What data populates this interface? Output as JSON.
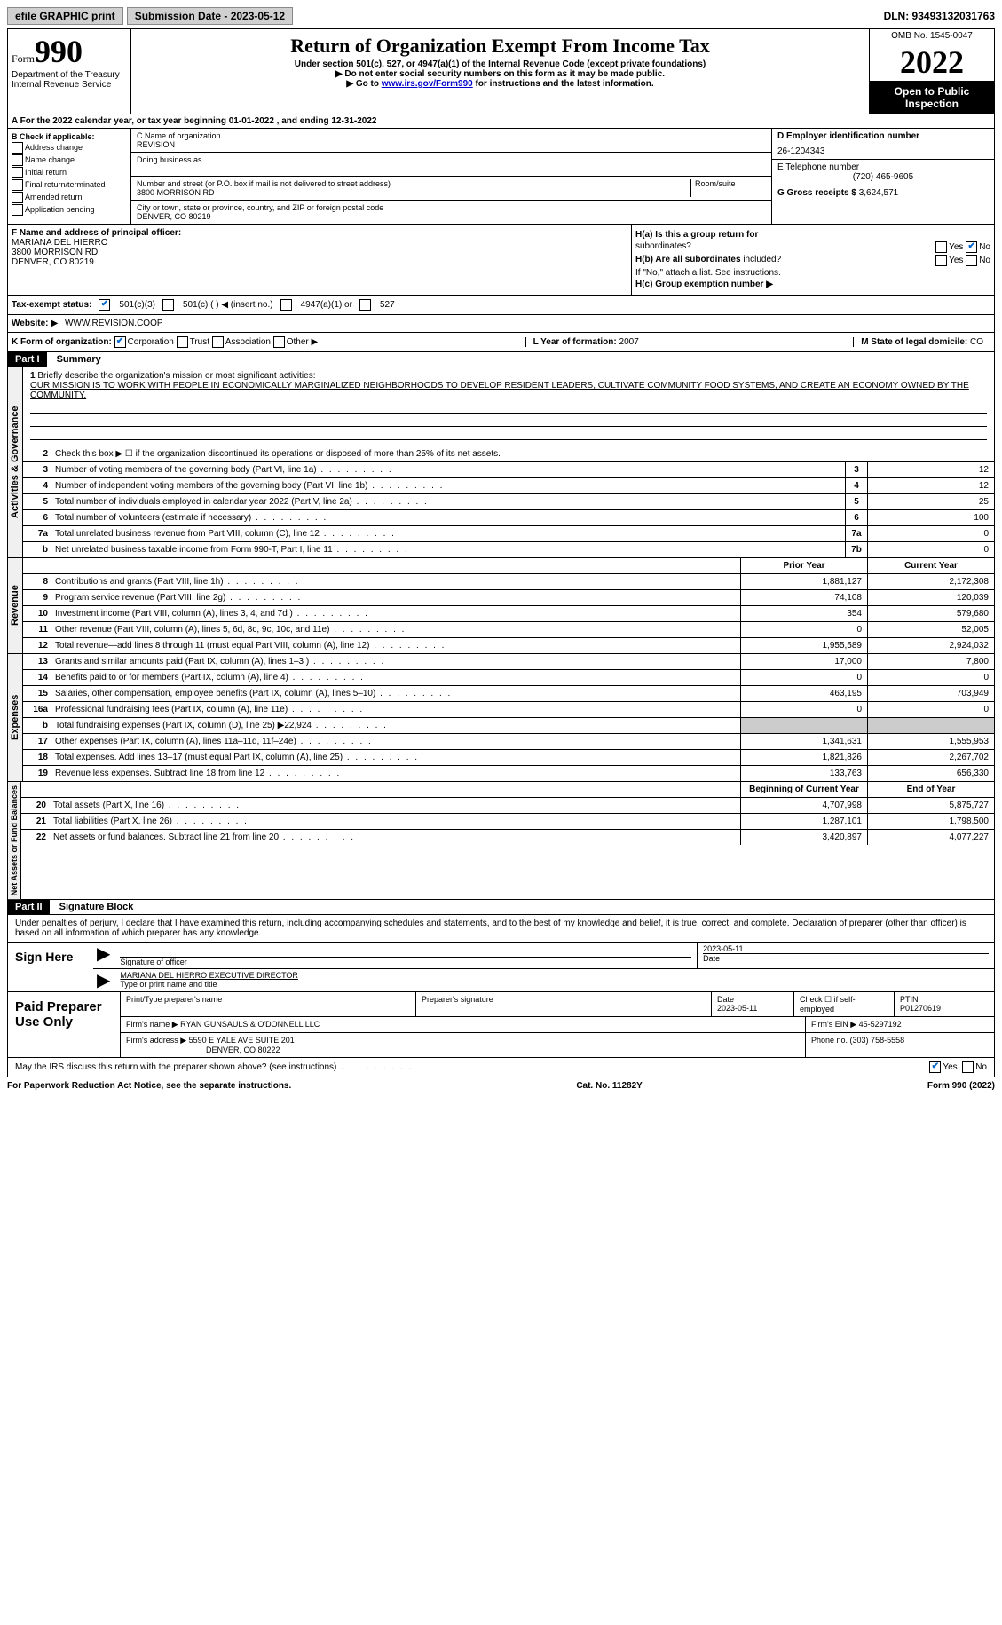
{
  "top": {
    "efile_label": "efile GRAPHIC print",
    "sub_date_label": "Submission Date - 2023-05-12",
    "dln": "DLN: 93493132031763"
  },
  "header": {
    "form_label": "Form",
    "form_num": "990",
    "dept": "Department of the Treasury",
    "irs": "Internal Revenue Service",
    "title": "Return of Organization Exempt From Income Tax",
    "sub": "Under section 501(c), 527, or 4947(a)(1) of the Internal Revenue Code (except private foundations)",
    "inst1": "▶ Do not enter social security numbers on this form as it may be made public.",
    "inst2_pre": "▶ Go to ",
    "inst2_link": "www.irs.gov/Form990",
    "inst2_post": " for instructions and the latest information.",
    "omb": "OMB No. 1545-0047",
    "year": "2022",
    "inspection1": "Open to Public",
    "inspection2": "Inspection"
  },
  "a": {
    "text_pre": "A For the 2022 calendar year, or tax year beginning ",
    "begin": "01-01-2022",
    "mid": " , and ending ",
    "end": "12-31-2022"
  },
  "b": {
    "label": "B Check if applicable:",
    "opt1": "Address change",
    "opt2": "Name change",
    "opt3": "Initial return",
    "opt4": "Final return/terminated",
    "opt5": "Amended return",
    "opt6": "Application pending"
  },
  "c": {
    "name_label": "C Name of organization",
    "name": "REVISION",
    "dba_label": "Doing business as",
    "addr_label": "Number and street (or P.O. box if mail is not delivered to street address)",
    "room_label": "Room/suite",
    "addr": "3800 MORRISON RD",
    "city_label": "City or town, state or province, country, and ZIP or foreign postal code",
    "city": "DENVER, CO  80219"
  },
  "d": {
    "ein_label": "D Employer identification number",
    "ein": "26-1204343",
    "phone_label": "E Telephone number",
    "phone": "(720) 465-9605",
    "gross_label": "G Gross receipts $ ",
    "gross": "3,624,571"
  },
  "f": {
    "label": "F Name and address of principal officer:",
    "name": "MARIANA DEL HIERRO",
    "addr": "3800 MORRISON RD",
    "city": "DENVER, CO  80219"
  },
  "h": {
    "a_label": "H(a)  Is this a group return for",
    "a_sub": "subordinates?",
    "b_label": "H(b)  Are all subordinates",
    "b_sub": "included?",
    "b_note": "If \"No,\" attach a list. See instructions.",
    "c_label": "H(c)  Group exemption number ▶",
    "yes": "Yes",
    "no": "No"
  },
  "i": {
    "label": "Tax-exempt status:",
    "o1": "501(c)(3)",
    "o2": "501(c) (  ) ◀ (insert no.)",
    "o3": "4947(a)(1) or",
    "o4": "527"
  },
  "j": {
    "label": "Website: ▶",
    "value": "WWW.REVISION.COOP"
  },
  "k": {
    "label": "K Form of organization:",
    "o1": "Corporation",
    "o2": "Trust",
    "o3": "Association",
    "o4": "Other ▶",
    "l_label": "L Year of formation: ",
    "l_val": "2007",
    "m_label": "M State of legal domicile: ",
    "m_val": "CO"
  },
  "part1": {
    "header": "Part I",
    "title": "Summary",
    "q1_label": "Briefly describe the organization's mission or most significant activities:",
    "q1_text": "OUR MISSION IS TO WORK WITH PEOPLE IN ECONOMICALLY MARGINALIZED NEIGHBORHOODS TO DEVELOP RESIDENT LEADERS, CULTIVATE COMMUNITY FOOD SYSTEMS, AND CREATE AN ECONOMY OWNED BY THE COMMUNITY.",
    "q2": "Check this box ▶ ☐ if the organization discontinued its operations or disposed of more than 25% of its net assets.",
    "sec_act": "Activities & Governance",
    "sec_rev": "Revenue",
    "sec_exp": "Expenses",
    "sec_net": "Net Assets or Fund Balances",
    "prior_year": "Prior Year",
    "current_year": "Current Year",
    "begin_year": "Beginning of Current Year",
    "end_year": "End of Year",
    "rows_gov": [
      {
        "n": "3",
        "d": "Number of voting members of the governing body (Part VI, line 1a)",
        "b": "3",
        "v": "12"
      },
      {
        "n": "4",
        "d": "Number of independent voting members of the governing body (Part VI, line 1b)",
        "b": "4",
        "v": "12"
      },
      {
        "n": "5",
        "d": "Total number of individuals employed in calendar year 2022 (Part V, line 2a)",
        "b": "5",
        "v": "25"
      },
      {
        "n": "6",
        "d": "Total number of volunteers (estimate if necessary)",
        "b": "6",
        "v": "100"
      },
      {
        "n": "7a",
        "d": "Total unrelated business revenue from Part VIII, column (C), line 12",
        "b": "7a",
        "v": "0"
      },
      {
        "n": "b",
        "d": "Net unrelated business taxable income from Form 990-T, Part I, line 11",
        "b": "7b",
        "v": "0"
      }
    ],
    "rows_rev": [
      {
        "n": "8",
        "d": "Contributions and grants (Part VIII, line 1h)",
        "p": "1,881,127",
        "c": "2,172,308"
      },
      {
        "n": "9",
        "d": "Program service revenue (Part VIII, line 2g)",
        "p": "74,108",
        "c": "120,039"
      },
      {
        "n": "10",
        "d": "Investment income (Part VIII, column (A), lines 3, 4, and 7d )",
        "p": "354",
        "c": "579,680"
      },
      {
        "n": "11",
        "d": "Other revenue (Part VIII, column (A), lines 5, 6d, 8c, 9c, 10c, and 11e)",
        "p": "0",
        "c": "52,005"
      },
      {
        "n": "12",
        "d": "Total revenue—add lines 8 through 11 (must equal Part VIII, column (A), line 12)",
        "p": "1,955,589",
        "c": "2,924,032"
      }
    ],
    "rows_exp": [
      {
        "n": "13",
        "d": "Grants and similar amounts paid (Part IX, column (A), lines 1–3 )",
        "p": "17,000",
        "c": "7,800"
      },
      {
        "n": "14",
        "d": "Benefits paid to or for members (Part IX, column (A), line 4)",
        "p": "0",
        "c": "0"
      },
      {
        "n": "15",
        "d": "Salaries, other compensation, employee benefits (Part IX, column (A), lines 5–10)",
        "p": "463,195",
        "c": "703,949"
      },
      {
        "n": "16a",
        "d": "Professional fundraising fees (Part IX, column (A), line 11e)",
        "p": "0",
        "c": "0"
      },
      {
        "n": "b",
        "d": "Total fundraising expenses (Part IX, column (D), line 25) ▶22,924",
        "p": "",
        "c": "",
        "shaded": true
      },
      {
        "n": "17",
        "d": "Other expenses (Part IX, column (A), lines 11a–11d, 11f–24e)",
        "p": "1,341,631",
        "c": "1,555,953"
      },
      {
        "n": "18",
        "d": "Total expenses. Add lines 13–17 (must equal Part IX, column (A), line 25)",
        "p": "1,821,826",
        "c": "2,267,702"
      },
      {
        "n": "19",
        "d": "Revenue less expenses. Subtract line 18 from line 12",
        "p": "133,763",
        "c": "656,330"
      }
    ],
    "rows_net": [
      {
        "n": "20",
        "d": "Total assets (Part X, line 16)",
        "p": "4,707,998",
        "c": "5,875,727"
      },
      {
        "n": "21",
        "d": "Total liabilities (Part X, line 26)",
        "p": "1,287,101",
        "c": "1,798,500"
      },
      {
        "n": "22",
        "d": "Net assets or fund balances. Subtract line 21 from line 20",
        "p": "3,420,897",
        "c": "4,077,227"
      }
    ]
  },
  "part2": {
    "header": "Part II",
    "title": "Signature Block",
    "decl": "Under penalties of perjury, I declare that I have examined this return, including accompanying schedules and statements, and to the best of my knowledge and belief, it is true, correct, and complete. Declaration of preparer (other than officer) is based on all information of which preparer has any knowledge.",
    "sign_here": "Sign Here",
    "sig_officer": "Signature of officer",
    "sig_date": "2023-05-11",
    "date_label": "Date",
    "name_title": "MARIANA DEL HIERRO  EXECUTIVE DIRECTOR",
    "name_label": "Type or print name and title",
    "paid": "Paid Preparer Use Only",
    "prep_name_label": "Print/Type preparer's name",
    "prep_sig_label": "Preparer's signature",
    "prep_date_label": "Date",
    "prep_date": "2023-05-11",
    "check_label": "Check ☐ if self-employed",
    "ptin_label": "PTIN",
    "ptin": "P01270619",
    "firm_name_label": "Firm's name    ▶ ",
    "firm_name": "RYAN GUNSAULS & O'DONNELL LLC",
    "firm_ein_label": "Firm's EIN ▶ ",
    "firm_ein": "45-5297192",
    "firm_addr_label": "Firm's address ▶ ",
    "firm_addr1": "5590 E YALE AVE SUITE 201",
    "firm_addr2": "DENVER, CO  80222",
    "firm_phone_label": "Phone no. ",
    "firm_phone": "(303) 758-5558",
    "discuss": "May the IRS discuss this return with the preparer shown above? (see instructions)"
  },
  "footer": {
    "pra": "For Paperwork Reduction Act Notice, see the separate instructions.",
    "cat": "Cat. No. 11282Y",
    "form": "Form 990 (2022)"
  }
}
